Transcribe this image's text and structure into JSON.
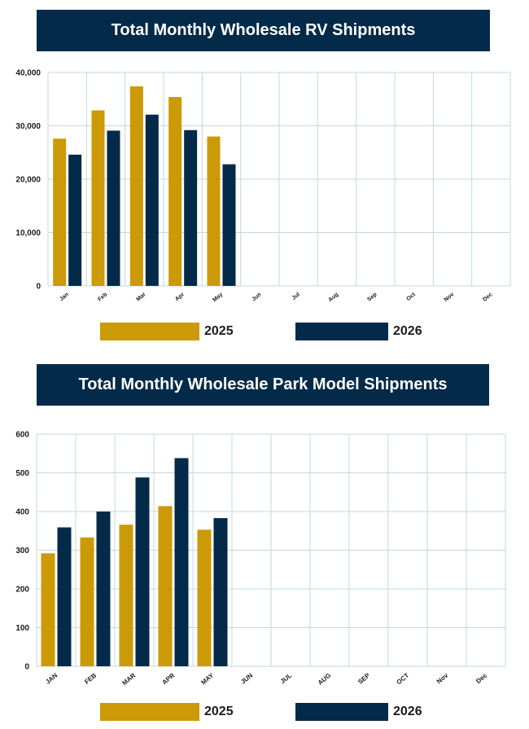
{
  "colors": {
    "y2025": "#cc9a06",
    "y2026": "#032a49",
    "title_bg": "#032a49",
    "grid": "#c4d8d8"
  },
  "chart_data": [
    {
      "type": "bar",
      "title": "Total Monthly Wholesale RV Shipments",
      "categories": [
        "Jan",
        "Feb",
        "Mar",
        "Apr",
        "May",
        "Jun",
        "Jul",
        "Aug",
        "Sep",
        "Oct",
        "Nov",
        "Dec"
      ],
      "ytick_labels": [
        "0",
        "10,000",
        "20,000",
        "30,000",
        "40,000"
      ],
      "ylim": [
        0,
        40000
      ],
      "grid": true,
      "legend_position": "bottom",
      "series": [
        {
          "name": "2025",
          "values": [
            27600,
            32900,
            37400,
            35400,
            28000,
            null,
            null,
            null,
            null,
            null,
            null,
            null
          ]
        },
        {
          "name": "2026",
          "values": [
            24600,
            29100,
            32100,
            29200,
            22800,
            null,
            null,
            null,
            null,
            null,
            null,
            null
          ]
        }
      ]
    },
    {
      "type": "bar",
      "title": "Total Monthly Wholesale Park Model Shipments",
      "categories": [
        "JAN",
        "FEB",
        "MAR",
        "APR",
        "MAY",
        "JUN",
        "JUL",
        "AUG",
        "SEP",
        "OCT",
        "Nov",
        "Dec"
      ],
      "ytick_labels": [
        "0",
        "100",
        "200",
        "300",
        "400",
        "500",
        "600"
      ],
      "ylim": [
        0,
        600
      ],
      "grid": true,
      "legend_position": "bottom",
      "series": [
        {
          "name": "2025",
          "values": [
            292,
            333,
            366,
            414,
            353,
            null,
            null,
            null,
            null,
            null,
            null,
            null
          ]
        },
        {
          "name": "2026",
          "values": [
            359,
            400,
            488,
            538,
            383,
            null,
            null,
            null,
            null,
            null,
            null,
            null
          ]
        }
      ]
    }
  ]
}
